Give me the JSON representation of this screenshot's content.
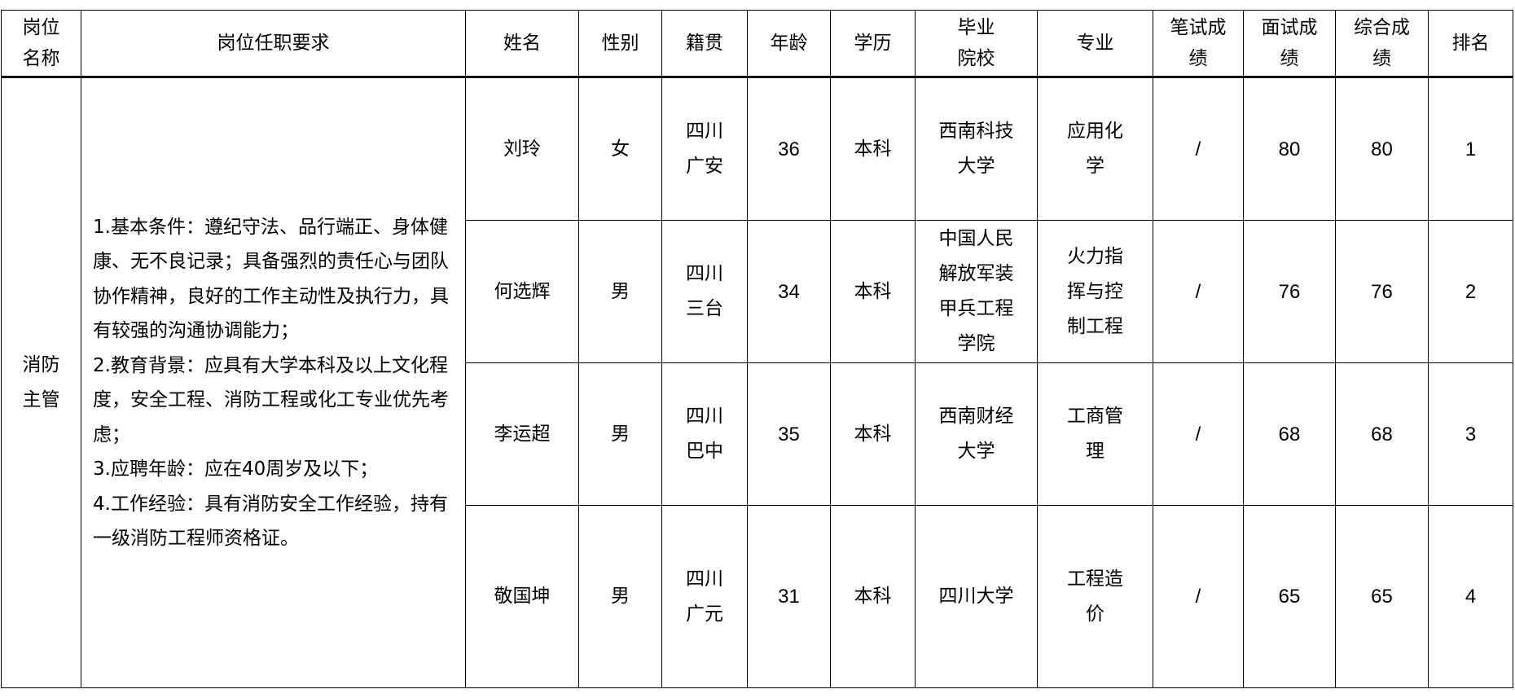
{
  "headers": [
    "岗位名称",
    "岗位任职要求",
    "姓名",
    "性别",
    "籍贯",
    "年龄",
    "学历",
    "毕业院校",
    "专业",
    "笔试成绩",
    "面试成绩",
    "综合成绩",
    "排名"
  ],
  "header_lines": [
    [
      "岗位",
      "名称"
    ],
    [
      "岗位任职要求"
    ],
    [
      "姓名"
    ],
    [
      "性别"
    ],
    [
      "籍贯"
    ],
    [
      "年龄"
    ],
    [
      "学历"
    ],
    [
      "毕业",
      "院校"
    ],
    [
      "专业"
    ],
    [
      "笔试成",
      "绩"
    ],
    [
      "面试成",
      "绩"
    ],
    [
      "综合成",
      "绩"
    ],
    [
      "排名"
    ]
  ],
  "position": {
    "lines": [
      "消防",
      "主管"
    ]
  },
  "requirements": [
    "1.基本条件：遵纪守法、品行端正、身体健康、无不良记录；具备强烈的责任心与团队协作精神，良好的工作主动性及执行力，具有较强的沟通协调能力；",
    "2.教育背景：应具有大学本科及以上文化程度，安全工程、消防工程或化工专业优先考虑；",
    "3.应聘年龄：应在40周岁及以下；",
    "4.工作经验：具有消防安全工作经验，持有一级消防工程师资格证。"
  ],
  "rows": [
    {
      "name": "刘玲",
      "gender": "女",
      "origin": [
        "四川",
        "广安"
      ],
      "age": "36",
      "education": "本科",
      "school": [
        "西南科技",
        "大学"
      ],
      "major": [
        "应用化",
        "学"
      ],
      "written": "/",
      "interview": "80",
      "total": "80",
      "rank": "1"
    },
    {
      "name": "何选辉",
      "gender": "男",
      "origin": [
        "四川",
        "三台"
      ],
      "age": "34",
      "education": "本科",
      "school": [
        "中国人民",
        "解放军装",
        "甲兵工程",
        "学院"
      ],
      "major": [
        "火力指",
        "挥与控",
        "制工程"
      ],
      "written": "/",
      "interview": "76",
      "total": "76",
      "rank": "2"
    },
    {
      "name": "李运超",
      "gender": "男",
      "origin": [
        "四川",
        "巴中"
      ],
      "age": "35",
      "education": "本科",
      "school": [
        "西南财经",
        "大学"
      ],
      "major": [
        "工商管",
        "理"
      ],
      "written": "/",
      "interview": "68",
      "total": "68",
      "rank": "3"
    },
    {
      "name": "敬国坤",
      "gender": "男",
      "origin": [
        "四川",
        "广元"
      ],
      "age": "31",
      "education": "本科",
      "school": [
        "四川大学"
      ],
      "major": [
        "工程造",
        "价"
      ],
      "written": "/",
      "interview": "65",
      "total": "65",
      "rank": "4"
    }
  ]
}
